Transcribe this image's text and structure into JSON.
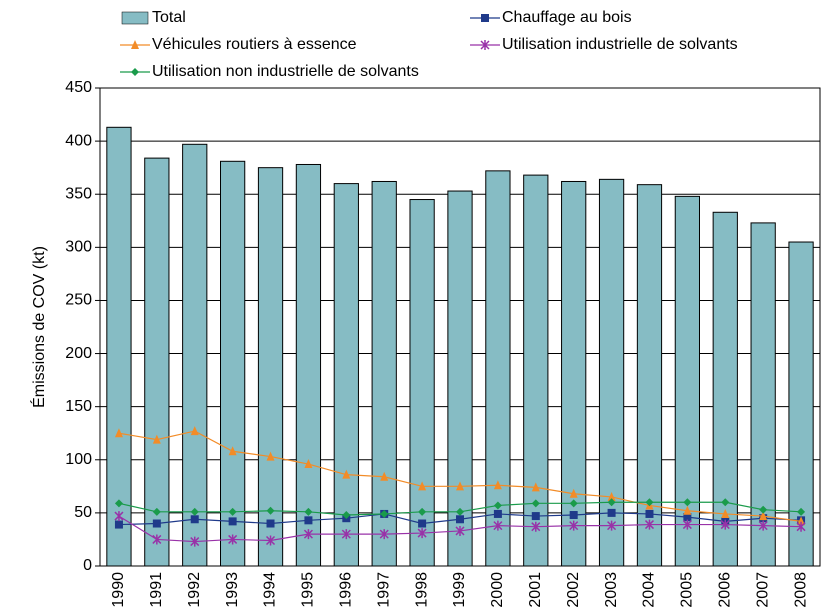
{
  "chart_data": {
    "type": "bar",
    "y_label": "Émissions de COV (kt)",
    "categories": [
      "1990",
      "1991",
      "1992",
      "1993",
      "1994",
      "1995",
      "1996",
      "1997",
      "1998",
      "1999",
      "2000",
      "2001",
      "2002",
      "2003",
      "2004",
      "2005",
      "2006",
      "2007",
      "2008"
    ],
    "series": [
      {
        "name": "Total",
        "type": "bar",
        "color": "#86bcc4",
        "values": [
          413,
          384,
          397,
          381,
          375,
          378,
          360,
          362,
          345,
          353,
          372,
          368,
          362,
          364,
          359,
          348,
          333,
          323,
          305
        ]
      },
      {
        "name": "Chauffage au bois",
        "type": "line",
        "marker": "square",
        "color": "#1f3a8a",
        "values": [
          39,
          40,
          44,
          42,
          40,
          43,
          45,
          49,
          40,
          44,
          49,
          47,
          48,
          50,
          49,
          46,
          42,
          45,
          43
        ]
      },
      {
        "name": "Véhicules routiers à essence",
        "type": "line",
        "marker": "triangle",
        "color": "#f28c28",
        "values": [
          125,
          119,
          127,
          108,
          103,
          96,
          86,
          84,
          75,
          75,
          76,
          74,
          68,
          65,
          57,
          52,
          49,
          47,
          42
        ]
      },
      {
        "name": "Utilisation industrielle de solvants",
        "type": "line",
        "marker": "star",
        "color": "#9932a8",
        "values": [
          47,
          25,
          23,
          25,
          24,
          30,
          30,
          30,
          31,
          33,
          38,
          37,
          38,
          38,
          39,
          39,
          39,
          38,
          37
        ]
      },
      {
        "name": "Utilisation non industrielle de solvants",
        "type": "line",
        "marker": "diamond",
        "color": "#1a9b4b",
        "values": [
          59,
          51,
          51,
          51,
          52,
          51,
          48,
          49,
          51,
          51,
          57,
          59,
          59,
          60,
          60,
          60,
          60,
          53,
          51
        ]
      }
    ],
    "ylim": [
      0,
      450
    ],
    "yticks": [
      0,
      50,
      100,
      150,
      200,
      250,
      300,
      350,
      400,
      450
    ],
    "grid": true,
    "legend": "top"
  }
}
